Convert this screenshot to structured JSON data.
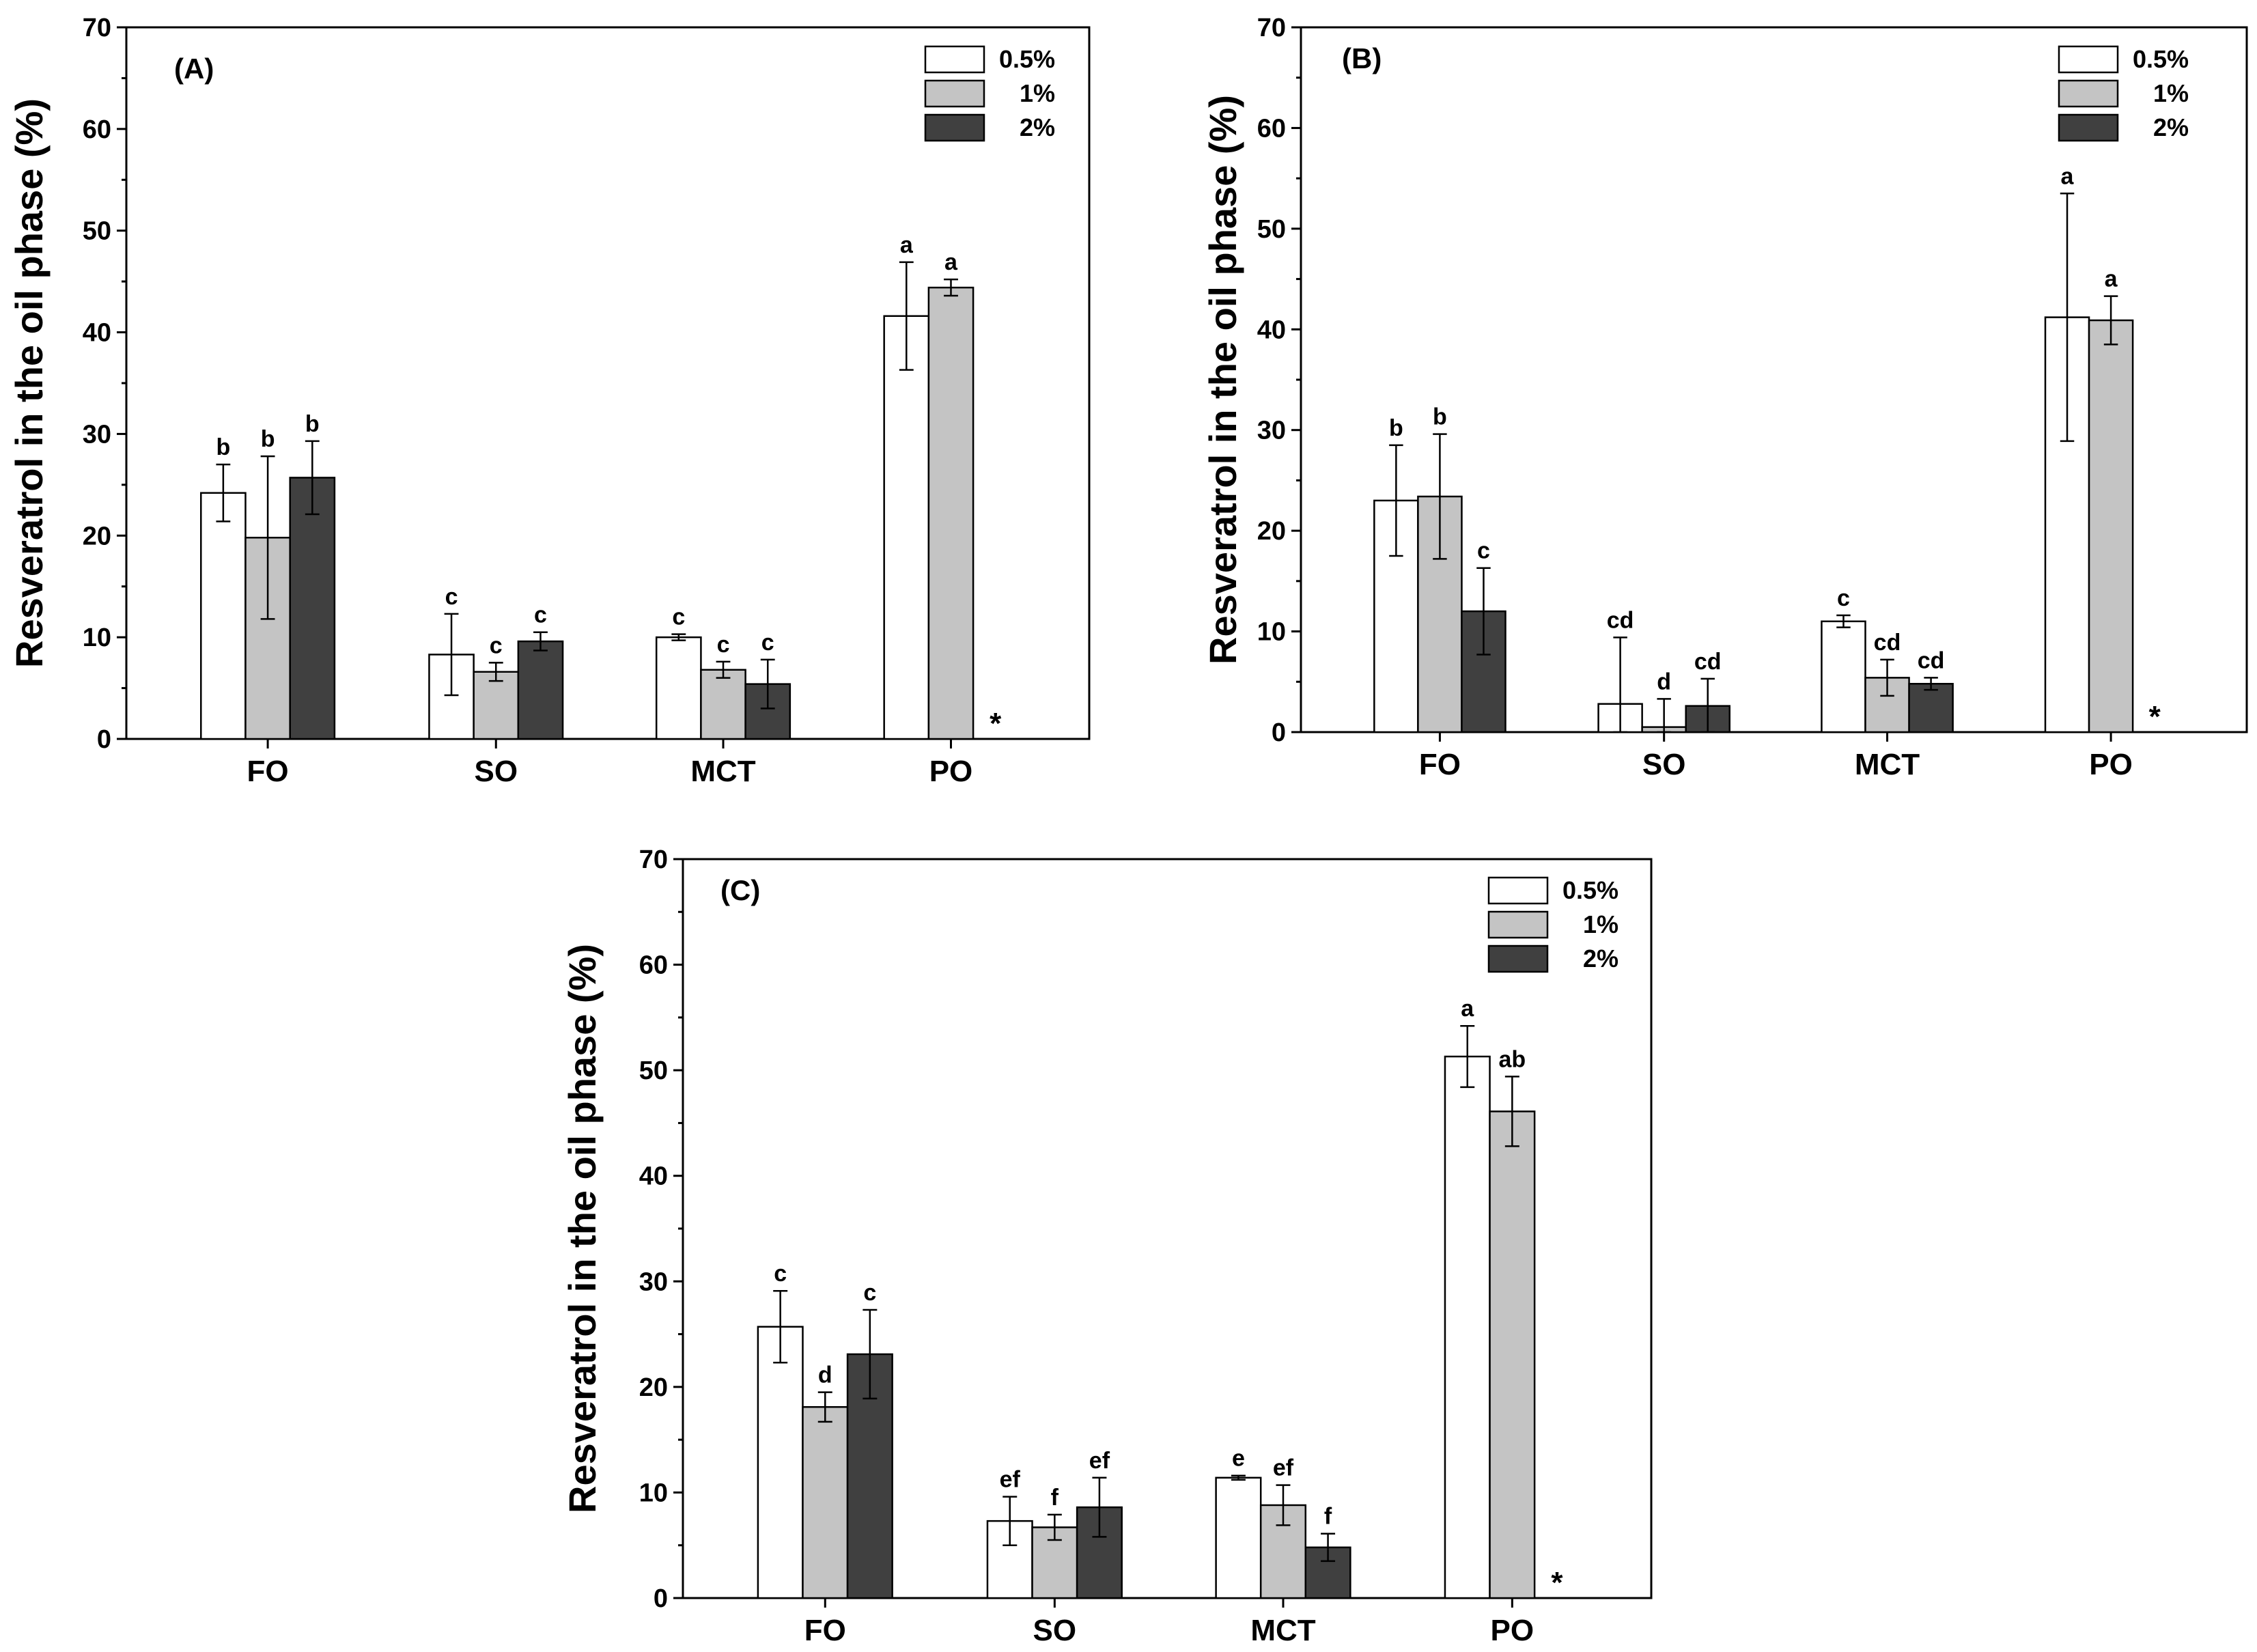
{
  "colors": {
    "s05": "#ffffff",
    "s1": "#c4c4c4",
    "s2": "#404040",
    "stroke": "#000000"
  },
  "chart_data": [
    {
      "type": "bar",
      "title": "(A)",
      "xlabel": "",
      "ylabel": "Resveratrol in the oil phase (%)",
      "ylim": [
        0,
        70
      ],
      "yticks": [
        "0",
        "10",
        "20",
        "30",
        "40",
        "50",
        "60",
        "70"
      ],
      "categories": [
        "FO",
        "SO",
        "MCT",
        "PO"
      ],
      "legend": [
        "0.5%",
        "1%",
        "2%"
      ],
      "legend_position": "top-right",
      "series": [
        {
          "name": "0.5%",
          "values": [
            24.2,
            8.3,
            10.0,
            41.6
          ],
          "errors": [
            2.8,
            4.0,
            0.3,
            5.3
          ],
          "letters": [
            "b",
            "c",
            "c",
            "a"
          ]
        },
        {
          "name": "1%",
          "values": [
            19.8,
            6.6,
            6.8,
            44.4
          ],
          "errors": [
            8.0,
            0.9,
            0.8,
            0.8
          ],
          "letters": [
            "b",
            "c",
            "c",
            "a"
          ]
        },
        {
          "name": "2%",
          "values": [
            25.7,
            9.6,
            5.4,
            null
          ],
          "errors": [
            3.6,
            0.9,
            2.4,
            null
          ],
          "letters": [
            "b",
            "c",
            "c",
            "*"
          ]
        }
      ]
    },
    {
      "type": "bar",
      "title": "(B)",
      "xlabel": "",
      "ylabel": "Resveratrol in the oil phase (%)",
      "ylim": [
        0,
        70
      ],
      "yticks": [
        "0",
        "10",
        "20",
        "30",
        "40",
        "50",
        "60",
        "70"
      ],
      "categories": [
        "FO",
        "SO",
        "MCT",
        "PO"
      ],
      "legend": [
        "0.5%",
        "1%",
        "2%"
      ],
      "legend_position": "top-right",
      "series": [
        {
          "name": "0.5%",
          "values": [
            23.0,
            2.8,
            11.0,
            41.2
          ],
          "errors": [
            5.5,
            6.6,
            0.6,
            12.3
          ],
          "letters": [
            "b",
            "cd",
            "c",
            "a"
          ]
        },
        {
          "name": "1%",
          "values": [
            23.4,
            0.5,
            5.4,
            40.9
          ],
          "errors": [
            6.2,
            2.8,
            1.8,
            2.4
          ],
          "letters": [
            "b",
            "d",
            "cd",
            "a"
          ]
        },
        {
          "name": "2%",
          "values": [
            12.0,
            2.6,
            4.8,
            null
          ],
          "errors": [
            4.3,
            2.7,
            0.6,
            null
          ],
          "letters": [
            "c",
            "cd",
            "cd",
            "*"
          ]
        }
      ]
    },
    {
      "type": "bar",
      "title": "(C)",
      "xlabel": "",
      "ylabel": "Resveratrol in the oil phase (%)",
      "ylim": [
        0,
        70
      ],
      "yticks": [
        "0",
        "10",
        "20",
        "30",
        "40",
        "50",
        "60",
        "70"
      ],
      "categories": [
        "FO",
        "SO",
        "MCT",
        "PO"
      ],
      "legend": [
        "0.5%",
        "1%",
        "2%"
      ],
      "legend_position": "top-right",
      "series": [
        {
          "name": "0.5%",
          "values": [
            25.7,
            7.3,
            11.4,
            51.3
          ],
          "errors": [
            3.4,
            2.3,
            0.2,
            2.9
          ],
          "letters": [
            "c",
            "ef",
            "e",
            "a"
          ]
        },
        {
          "name": "1%",
          "values": [
            18.1,
            6.7,
            8.8,
            46.1
          ],
          "errors": [
            1.4,
            1.2,
            1.9,
            3.3
          ],
          "letters": [
            "d",
            "f",
            "ef",
            "ab"
          ]
        },
        {
          "name": "2%",
          "values": [
            23.1,
            8.6,
            4.8,
            null
          ],
          "errors": [
            4.2,
            2.8,
            1.3,
            null
          ],
          "letters": [
            "c",
            "ef",
            "f",
            "*"
          ]
        }
      ]
    }
  ]
}
